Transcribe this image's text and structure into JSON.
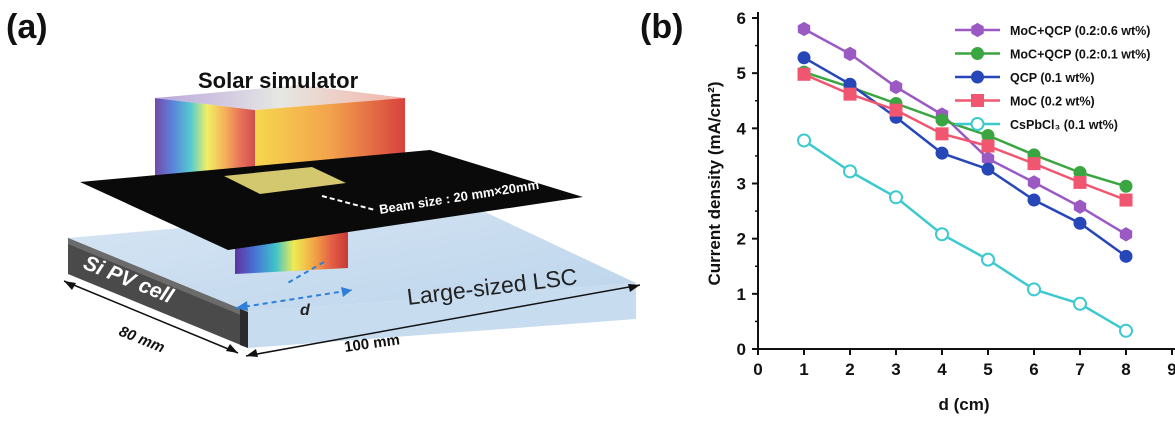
{
  "panel_a": {
    "label": "(a)",
    "solar_simulator": "Solar simulator",
    "beam_size": "Beam size : 20 mm×20mm",
    "si_pv_cell": "Si PV cell",
    "lsc": "Large-sized LSC",
    "d_label": "d",
    "dim_80": "80 mm",
    "dim_100": "100 mm"
  },
  "panel_b": {
    "label": "(b)"
  },
  "chart_data": {
    "type": "line",
    "title": "",
    "xlabel": "d (cm)",
    "ylabel": "Current density (mA/cm²)",
    "x": [
      1,
      2,
      3,
      4,
      5,
      6,
      7,
      8
    ],
    "xlim": [
      0,
      9
    ],
    "ylim": [
      0,
      6
    ],
    "xticks": [
      "0",
      "1",
      "2",
      "3",
      "4",
      "5",
      "6",
      "7",
      "8",
      "9"
    ],
    "yticks": [
      "0",
      "1",
      "2",
      "3",
      "4",
      "5",
      "6"
    ],
    "legend_position": "top-right",
    "series": [
      {
        "name": "MoC+QCP (0.2:0.6 wt%)",
        "color": "#9b59c4",
        "marker": "hexagon",
        "filled": true,
        "values": [
          5.8,
          5.35,
          4.75,
          4.25,
          3.45,
          3.02,
          2.58,
          2.08
        ]
      },
      {
        "name": "MoC+QCP (0.2:0.1 wt%)",
        "color": "#3aa641",
        "marker": "circle",
        "filled": true,
        "values": [
          5.02,
          4.75,
          4.45,
          4.15,
          3.87,
          3.52,
          3.2,
          2.95
        ]
      },
      {
        "name": "QCP (0.1 wt%)",
        "color": "#2747b8",
        "marker": "circle",
        "filled": true,
        "values": [
          5.28,
          4.8,
          4.2,
          3.55,
          3.26,
          2.7,
          2.28,
          1.68
        ]
      },
      {
        "name": "MoC (0.2 wt%)",
        "color": "#f0566f",
        "marker": "square",
        "filled": true,
        "values": [
          4.98,
          4.62,
          4.33,
          3.9,
          3.68,
          3.36,
          3.02,
          2.7
        ]
      },
      {
        "name": "CsPbCl₃ (0.1 wt%)",
        "color": "#3cc9cf",
        "marker": "circle",
        "filled": false,
        "values": [
          3.78,
          3.22,
          2.75,
          2.08,
          1.62,
          1.08,
          0.82,
          0.33
        ]
      }
    ]
  }
}
